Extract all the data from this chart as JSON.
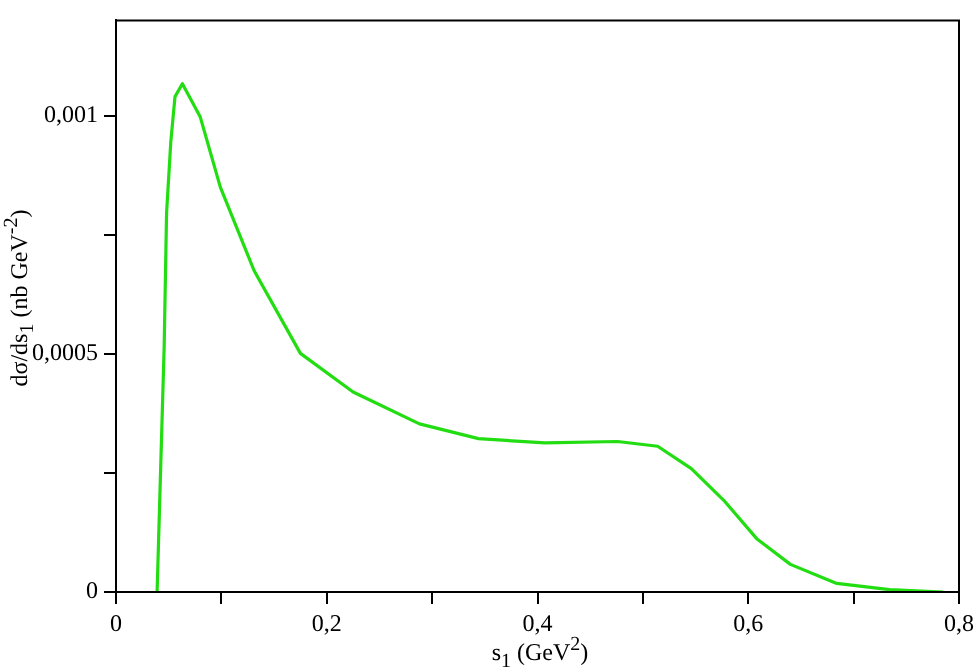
{
  "chart_data": {
    "type": "line",
    "xlabel": "s$_{1}$ (GeV$^{2}$)",
    "ylabel": "dσ/ds$_{1}$ (nb GeV$^{-2}$)",
    "x": [
      0.039,
      0.0457,
      0.048,
      0.052,
      0.056,
      0.063,
      0.08,
      0.099,
      0.131,
      0.175,
      0.225,
      0.288,
      0.344,
      0.407,
      0.476,
      0.514,
      0.546,
      0.577,
      0.608,
      0.64,
      0.684,
      0.734,
      0.785
    ],
    "series": [
      {
        "color": "#22dd11",
        "values": [
          0,
          0.000514,
          0.000796,
          0.000945,
          0.00104,
          0.001067,
          0.000997,
          0.00085,
          0.000675,
          0.000501,
          0.00042,
          0.000353,
          0.000322,
          0.000313,
          0.000316,
          0.000306,
          0.000259,
          0.000192,
          0.000112,
          5.8e-05,
          1.8e-05,
          5e-06,
          0
        ]
      }
    ],
    "xlim": [
      0,
      0.8
    ],
    "ylim": [
      0,
      0.0012
    ],
    "xticks": [
      0,
      {
        "value": 0.1,
        "label": null
      },
      {
        "value": 0.2,
        "label": "0,2"
      },
      {
        "value": 0.3,
        "label": null
      },
      {
        "value": 0.4,
        "label": "0,4"
      },
      {
        "value": 0.5,
        "label": null
      },
      {
        "value": 0.6,
        "label": "0,6"
      },
      {
        "value": 0.7,
        "label": null
      },
      {
        "value": 0.8,
        "label": "0,8"
      }
    ],
    "yticks": [
      0,
      {
        "value": 0.00025,
        "label": null
      },
      {
        "value": 0.0005,
        "label": "0,0005"
      },
      {
        "value": 0.00075,
        "label": null
      },
      {
        "value": 0.001,
        "label": "0,001"
      }
    ],
    "grid": false,
    "legend": false,
    "marker": "none",
    "line_style": "solid"
  }
}
